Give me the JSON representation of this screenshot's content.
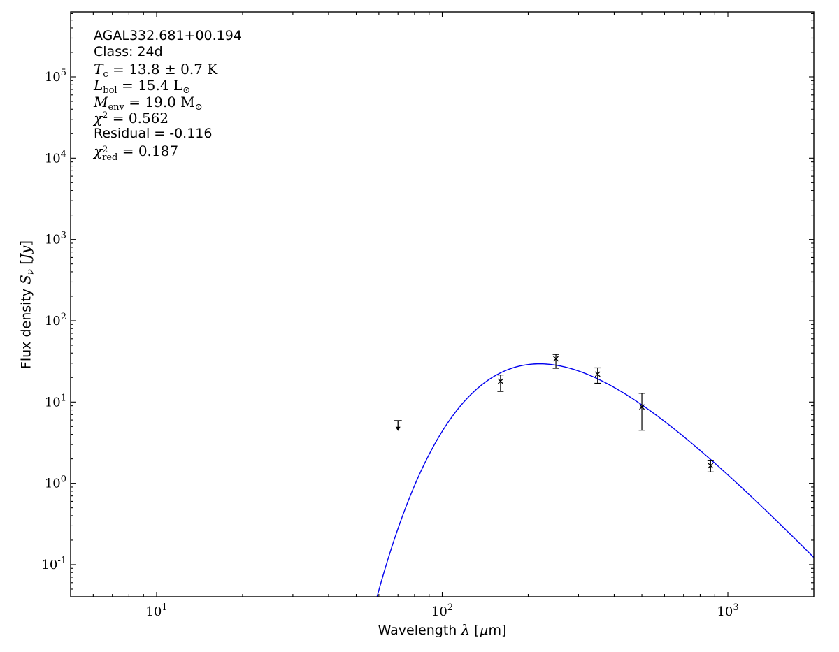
{
  "figure": {
    "background": "#ffffff",
    "axes_color": "#000000"
  },
  "annotation_lines": [
    {
      "name": "source-name",
      "segments": [
        {
          "t": "AGAL332.681+00.194",
          "f": "sans"
        }
      ]
    },
    {
      "name": "class",
      "segments": [
        {
          "t": "Class: 24d",
          "f": "sans"
        }
      ]
    },
    {
      "name": "dust-temperature",
      "segments": [
        {
          "t": "T",
          "f": "it"
        },
        {
          "t": "c",
          "f": "rm",
          "v": "sub"
        },
        {
          "t": " = 13.8 ± 0.7 K",
          "f": "rm"
        }
      ]
    },
    {
      "name": "bolometric-luminosity",
      "segments": [
        {
          "t": "L",
          "f": "it"
        },
        {
          "t": "bol",
          "f": "rm",
          "v": "sub"
        },
        {
          "t": " = 15.4 L",
          "f": "rm"
        },
        {
          "t": "⊙",
          "f": "rm",
          "v": "sub"
        }
      ]
    },
    {
      "name": "envelope-mass",
      "segments": [
        {
          "t": "M",
          "f": "it"
        },
        {
          "t": "env",
          "f": "rm",
          "v": "sub"
        },
        {
          "t": " = 19.0 M",
          "f": "rm"
        },
        {
          "t": "⊙",
          "f": "rm",
          "v": "sub"
        }
      ]
    },
    {
      "name": "chi-squared",
      "segments": [
        {
          "t": "χ",
          "f": "it"
        },
        {
          "t": "2",
          "f": "rm",
          "v": "sup"
        },
        {
          "t": " = 0.562",
          "f": "rm"
        }
      ]
    },
    {
      "name": "residual",
      "segments": [
        {
          "t": "Residual = -0.116",
          "f": "sans"
        }
      ]
    },
    {
      "name": "chi-squared-reduced",
      "segments": [
        {
          "t": "χ",
          "f": "it"
        },
        {
          "t": "2",
          "t2": "red",
          "f": "rm",
          "v": "supsub"
        },
        {
          "t": " = 0.187",
          "f": "rm"
        }
      ]
    }
  ],
  "fit_parameters": {
    "source": "AGAL332.681+00.194",
    "class": "24d",
    "T_c_K": "13.8 ± 0.7",
    "L_bol_Lsun": 15.4,
    "M_env_Msun": 19.0,
    "chi2": 0.562,
    "residual": -0.116,
    "chi2_red": 0.187
  },
  "chart_data": {
    "type": "scatter",
    "title": "",
    "xlabel": "Wavelength λ [μm]",
    "ylabel": "Flux density S_ν [Jy]",
    "x_scale": "log",
    "y_scale": "log",
    "xlim": [
      5,
      2000
    ],
    "ylim": [
      0.0402,
      630000
    ],
    "grid": false,
    "legend": "none",
    "x_major_tick_exponents": [
      1,
      2,
      3
    ],
    "y_major_tick_exponents": [
      5,
      4,
      3,
      2,
      1,
      0,
      -1
    ],
    "xlabel_segments": [
      {
        "t": "Wavelength ",
        "f": "sans"
      },
      {
        "t": "λ",
        "f": "it"
      },
      {
        "t": " [",
        "f": "sans"
      },
      {
        "t": "μ",
        "f": "it"
      },
      {
        "t": "m]",
        "f": "sans"
      }
    ],
    "ylabel_segments": [
      {
        "t": "Flux density ",
        "f": "sans"
      },
      {
        "t": "S",
        "f": "it"
      },
      {
        "t": "ν",
        "f": "it",
        "v": "sub"
      },
      {
        "t": " [",
        "f": "rm"
      },
      {
        "t": "Jy",
        "f": "it"
      },
      {
        "t": "]",
        "f": "rm"
      }
    ],
    "points": [
      {
        "wavelength_um": 70,
        "flux_jy": 5.9,
        "upper_limit": true,
        "arrow_to_jy": 4.4
      },
      {
        "wavelength_um": 160,
        "flux_jy": 18.0,
        "err_plus": 3.5,
        "err_minus": 4.5
      },
      {
        "wavelength_um": 250,
        "flux_jy": 34.0,
        "err_plus": 4.5,
        "err_minus": 8.0
      },
      {
        "wavelength_um": 350,
        "flux_jy": 22.0,
        "err_plus": 4.3,
        "err_minus": 5.0
      },
      {
        "wavelength_um": 500,
        "flux_jy": 8.7,
        "err_plus": 4.1,
        "err_minus": 4.2
      },
      {
        "wavelength_um": 870,
        "flux_jy": 1.65,
        "err_plus": 0.27,
        "err_minus": 0.27
      }
    ],
    "marker": {
      "style": "x",
      "color": "#000000"
    },
    "model_curve": {
      "model": "greybody",
      "T_K": 13.8,
      "beta": 1.8,
      "peak_flux_jy": 29.5,
      "peak_wavelength_um": 219,
      "lambda_range_um": [
        50,
        2000
      ],
      "color": "#0000EE"
    }
  }
}
